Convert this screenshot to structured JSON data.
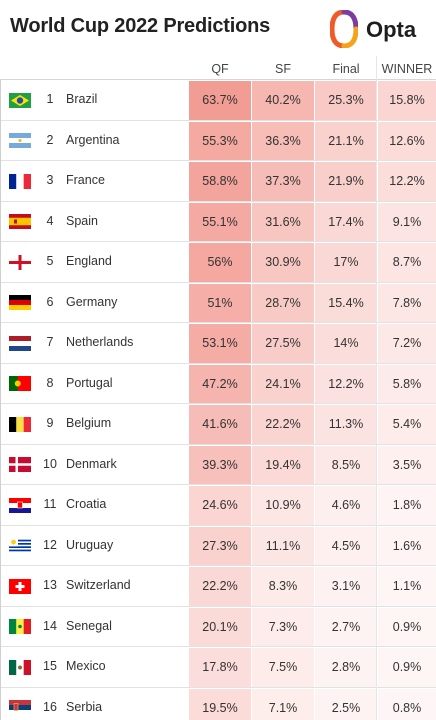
{
  "header": {
    "title": "World Cup 2022 Predictions",
    "brand": "Opta",
    "brand_colors": [
      "#f05a28",
      "#7a3ea0",
      "#f6a21b"
    ]
  },
  "chart_data": {
    "type": "table",
    "columns": [
      "QF",
      "SF",
      "Final",
      "WINNER"
    ],
    "rows": [
      {
        "rank": "1",
        "team": "Brazil",
        "flag": "brazil-flag-icon",
        "values": [
          "63.7%",
          "40.2%",
          "25.3%",
          "15.8%"
        ]
      },
      {
        "rank": "2",
        "team": "Argentina",
        "flag": "argentina-flag-icon",
        "values": [
          "55.3%",
          "36.3%",
          "21.1%",
          "12.6%"
        ]
      },
      {
        "rank": "3",
        "team": "France",
        "flag": "france-flag-icon",
        "values": [
          "58.8%",
          "37.3%",
          "21.9%",
          "12.2%"
        ]
      },
      {
        "rank": "4",
        "team": "Spain",
        "flag": "spain-flag-icon",
        "values": [
          "55.1%",
          "31.6%",
          "17.4%",
          "9.1%"
        ]
      },
      {
        "rank": "5",
        "team": "England",
        "flag": "england-flag-icon",
        "values": [
          "56%",
          "30.9%",
          "17%",
          "8.7%"
        ]
      },
      {
        "rank": "6",
        "team": "Germany",
        "flag": "germany-flag-icon",
        "values": [
          "51%",
          "28.7%",
          "15.4%",
          "7.8%"
        ]
      },
      {
        "rank": "7",
        "team": "Netherlands",
        "flag": "netherlands-flag-icon",
        "values": [
          "53.1%",
          "27.5%",
          "14%",
          "7.2%"
        ]
      },
      {
        "rank": "8",
        "team": "Portugal",
        "flag": "portugal-flag-icon",
        "values": [
          "47.2%",
          "24.1%",
          "12.2%",
          "5.8%"
        ]
      },
      {
        "rank": "9",
        "team": "Belgium",
        "flag": "belgium-flag-icon",
        "values": [
          "41.6%",
          "22.2%",
          "11.3%",
          "5.4%"
        ]
      },
      {
        "rank": "10",
        "team": "Denmark",
        "flag": "denmark-flag-icon",
        "values": [
          "39.3%",
          "19.4%",
          "8.5%",
          "3.5%"
        ]
      },
      {
        "rank": "11",
        "team": "Croatia",
        "flag": "croatia-flag-icon",
        "values": [
          "24.6%",
          "10.9%",
          "4.6%",
          "1.8%"
        ]
      },
      {
        "rank": "12",
        "team": "Uruguay",
        "flag": "uruguay-flag-icon",
        "values": [
          "27.3%",
          "11.1%",
          "4.5%",
          "1.6%"
        ]
      },
      {
        "rank": "13",
        "team": "Switzerland",
        "flag": "switzerland-flag-icon",
        "values": [
          "22.2%",
          "8.3%",
          "3.1%",
          "1.1%"
        ]
      },
      {
        "rank": "14",
        "team": "Senegal",
        "flag": "senegal-flag-icon",
        "values": [
          "20.1%",
          "7.3%",
          "2.7%",
          "0.9%"
        ]
      },
      {
        "rank": "15",
        "team": "Mexico",
        "flag": "mexico-flag-icon",
        "values": [
          "17.8%",
          "7.5%",
          "2.8%",
          "0.9%"
        ]
      },
      {
        "rank": "16",
        "team": "Serbia",
        "flag": "serbia-flag-icon",
        "values": [
          "19.5%",
          "7.1%",
          "2.5%",
          "0.8%"
        ]
      }
    ],
    "cell_color": "#f08a80"
  }
}
